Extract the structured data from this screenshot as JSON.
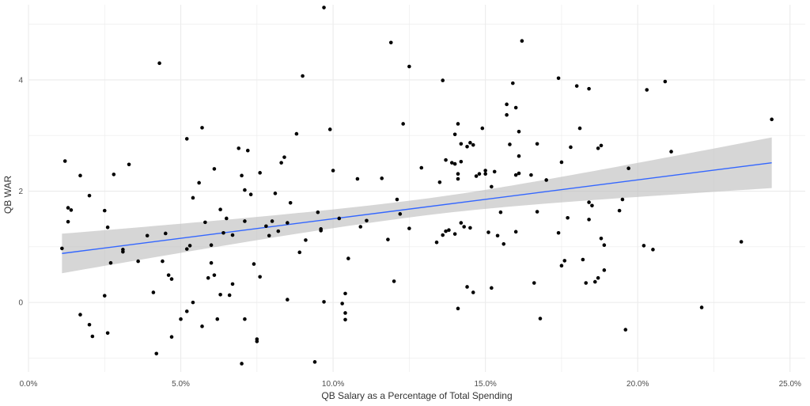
{
  "chart_data": {
    "type": "scatter",
    "title": "",
    "xlabel": "QB Salary as a Percentage of Total Spending",
    "ylabel": "QB WAR",
    "xlim": [
      0,
      0.255
    ],
    "ylim": [
      -1.25,
      5.35
    ],
    "x_ticks": [
      0,
      0.05,
      0.1,
      0.15,
      0.2,
      0.25
    ],
    "x_tick_labels": [
      "0.0%",
      "5.0%",
      "10.0%",
      "15.0%",
      "20.0%",
      "25.0%"
    ],
    "y_ticks": [
      0,
      2,
      4
    ],
    "y_tick_labels": [
      "0",
      "2",
      "4"
    ],
    "grid": true,
    "legend": "none",
    "colors": {
      "points": "#000000",
      "trend_line": "#3366ff",
      "confidence_band": "#bdbdbd",
      "grid": "#ebebeb"
    },
    "trend": {
      "x": [
        0.011,
        0.244
      ],
      "y": [
        0.88,
        2.51
      ],
      "ci_low": [
        0.54,
        2.06
      ],
      "ci_high": [
        1.25,
        2.97
      ]
    },
    "points": [
      [
        0.011,
        0.97
      ],
      [
        0.012,
        2.54
      ],
      [
        0.013,
        1.7
      ],
      [
        0.013,
        1.45
      ],
      [
        0.014,
        1.66
      ],
      [
        0.017,
        -0.22
      ],
      [
        0.017,
        2.28
      ],
      [
        0.02,
        -0.4
      ],
      [
        0.02,
        1.92
      ],
      [
        0.021,
        -0.61
      ],
      [
        0.025,
        0.12
      ],
      [
        0.025,
        1.65
      ],
      [
        0.026,
        1.35
      ],
      [
        0.026,
        -0.55
      ],
      [
        0.027,
        0.71
      ],
      [
        0.028,
        2.3
      ],
      [
        0.031,
        0.91
      ],
      [
        0.031,
        0.95
      ],
      [
        0.033,
        2.48
      ],
      [
        0.036,
        0.74
      ],
      [
        0.039,
        1.2
      ],
      [
        0.041,
        0.18
      ],
      [
        0.042,
        -0.92
      ],
      [
        0.043,
        4.3
      ],
      [
        0.044,
        0.74
      ],
      [
        0.045,
        1.24
      ],
      [
        0.046,
        0.49
      ],
      [
        0.047,
        -0.62
      ],
      [
        0.047,
        0.42
      ],
      [
        0.05,
        -0.3
      ],
      [
        0.052,
        0.96
      ],
      [
        0.052,
        2.94
      ],
      [
        0.052,
        -0.16
      ],
      [
        0.053,
        1.02
      ],
      [
        0.054,
        1.88
      ],
      [
        0.054,
        0.0
      ],
      [
        0.056,
        2.15
      ],
      [
        0.057,
        -0.43
      ],
      [
        0.057,
        3.14
      ],
      [
        0.058,
        1.44
      ],
      [
        0.059,
        0.44
      ],
      [
        0.06,
        0.71
      ],
      [
        0.06,
        1.03
      ],
      [
        0.061,
        2.4
      ],
      [
        0.061,
        0.49
      ],
      [
        0.062,
        -0.3
      ],
      [
        0.063,
        0.14
      ],
      [
        0.063,
        1.67
      ],
      [
        0.064,
        1.25
      ],
      [
        0.065,
        1.51
      ],
      [
        0.066,
        0.13
      ],
      [
        0.067,
        1.21
      ],
      [
        0.067,
        0.33
      ],
      [
        0.069,
        2.77
      ],
      [
        0.07,
        -1.1
      ],
      [
        0.07,
        2.28
      ],
      [
        0.071,
        -0.3
      ],
      [
        0.071,
        1.46
      ],
      [
        0.071,
        2.02
      ],
      [
        0.072,
        2.73
      ],
      [
        0.073,
        1.94
      ],
      [
        0.074,
        0.69
      ],
      [
        0.075,
        -0.7
      ],
      [
        0.075,
        -0.66
      ],
      [
        0.076,
        0.46
      ],
      [
        0.076,
        2.33
      ],
      [
        0.078,
        1.37
      ],
      [
        0.079,
        1.2
      ],
      [
        0.08,
        1.46
      ],
      [
        0.081,
        1.96
      ],
      [
        0.082,
        1.28
      ],
      [
        0.083,
        2.51
      ],
      [
        0.084,
        2.61
      ],
      [
        0.085,
        0.05
      ],
      [
        0.085,
        1.43
      ],
      [
        0.086,
        1.79
      ],
      [
        0.088,
        3.03
      ],
      [
        0.089,
        0.9
      ],
      [
        0.09,
        4.07
      ],
      [
        0.091,
        1.12
      ],
      [
        0.094,
        -1.07
      ],
      [
        0.095,
        1.62
      ],
      [
        0.096,
        1.32
      ],
      [
        0.096,
        1.29
      ],
      [
        0.097,
        0.01
      ],
      [
        0.097,
        5.3
      ],
      [
        0.099,
        3.11
      ],
      [
        0.1,
        2.37
      ],
      [
        0.102,
        1.51
      ],
      [
        0.103,
        -0.02
      ],
      [
        0.104,
        -0.31
      ],
      [
        0.104,
        0.16
      ],
      [
        0.104,
        -0.19
      ],
      [
        0.105,
        0.79
      ],
      [
        0.108,
        2.22
      ],
      [
        0.109,
        1.36
      ],
      [
        0.111,
        1.47
      ],
      [
        0.116,
        2.23
      ],
      [
        0.118,
        1.13
      ],
      [
        0.119,
        4.67
      ],
      [
        0.12,
        0.38
      ],
      [
        0.121,
        1.85
      ],
      [
        0.122,
        1.59
      ],
      [
        0.123,
        3.21
      ],
      [
        0.125,
        4.24
      ],
      [
        0.125,
        1.33
      ],
      [
        0.129,
        2.42
      ],
      [
        0.134,
        1.08
      ],
      [
        0.135,
        2.16
      ],
      [
        0.136,
        3.99
      ],
      [
        0.136,
        1.21
      ],
      [
        0.137,
        2.56
      ],
      [
        0.137,
        1.28
      ],
      [
        0.138,
        1.3
      ],
      [
        0.139,
        2.51
      ],
      [
        0.14,
        2.49
      ],
      [
        0.14,
        1.23
      ],
      [
        0.14,
        3.02
      ],
      [
        0.141,
        -0.11
      ],
      [
        0.141,
        2.22
      ],
      [
        0.141,
        3.21
      ],
      [
        0.141,
        2.31
      ],
      [
        0.142,
        1.43
      ],
      [
        0.142,
        2.53
      ],
      [
        0.142,
        2.85
      ],
      [
        0.143,
        1.36
      ],
      [
        0.144,
        0.28
      ],
      [
        0.144,
        2.8
      ],
      [
        0.145,
        2.87
      ],
      [
        0.145,
        1.34
      ],
      [
        0.146,
        0.18
      ],
      [
        0.146,
        2.83
      ],
      [
        0.147,
        2.27
      ],
      [
        0.148,
        2.31
      ],
      [
        0.149,
        3.13
      ],
      [
        0.15,
        2.31
      ],
      [
        0.15,
        2.37
      ],
      [
        0.151,
        1.26
      ],
      [
        0.152,
        0.26
      ],
      [
        0.152,
        2.08
      ],
      [
        0.153,
        2.35
      ],
      [
        0.154,
        1.2
      ],
      [
        0.155,
        1.62
      ],
      [
        0.156,
        1.05
      ],
      [
        0.157,
        3.37
      ],
      [
        0.157,
        3.56
      ],
      [
        0.158,
        2.84
      ],
      [
        0.159,
        3.94
      ],
      [
        0.16,
        1.27
      ],
      [
        0.16,
        2.29
      ],
      [
        0.16,
        3.5
      ],
      [
        0.161,
        2.32
      ],
      [
        0.161,
        3.07
      ],
      [
        0.161,
        2.63
      ],
      [
        0.162,
        4.7
      ],
      [
        0.165,
        2.29
      ],
      [
        0.166,
        0.35
      ],
      [
        0.167,
        1.63
      ],
      [
        0.167,
        2.85
      ],
      [
        0.168,
        -0.29
      ],
      [
        0.17,
        2.2
      ],
      [
        0.174,
        1.25
      ],
      [
        0.174,
        4.03
      ],
      [
        0.175,
        2.52
      ],
      [
        0.175,
        0.66
      ],
      [
        0.176,
        0.75
      ],
      [
        0.177,
        1.52
      ],
      [
        0.178,
        2.79
      ],
      [
        0.18,
        3.89
      ],
      [
        0.181,
        3.13
      ],
      [
        0.182,
        0.77
      ],
      [
        0.183,
        0.35
      ],
      [
        0.184,
        1.8
      ],
      [
        0.184,
        1.49
      ],
      [
        0.184,
        3.84
      ],
      [
        0.185,
        1.74
      ],
      [
        0.186,
        0.37
      ],
      [
        0.187,
        2.77
      ],
      [
        0.187,
        0.44
      ],
      [
        0.188,
        1.15
      ],
      [
        0.188,
        2.82
      ],
      [
        0.189,
        1.03
      ],
      [
        0.189,
        0.58
      ],
      [
        0.194,
        1.65
      ],
      [
        0.195,
        1.85
      ],
      [
        0.196,
        -0.49
      ],
      [
        0.197,
        2.41
      ],
      [
        0.202,
        1.02
      ],
      [
        0.203,
        3.82
      ],
      [
        0.205,
        0.95
      ],
      [
        0.209,
        3.97
      ],
      [
        0.211,
        2.71
      ],
      [
        0.221,
        -0.09
      ],
      [
        0.234,
        1.09
      ],
      [
        0.244,
        3.29
      ]
    ]
  }
}
